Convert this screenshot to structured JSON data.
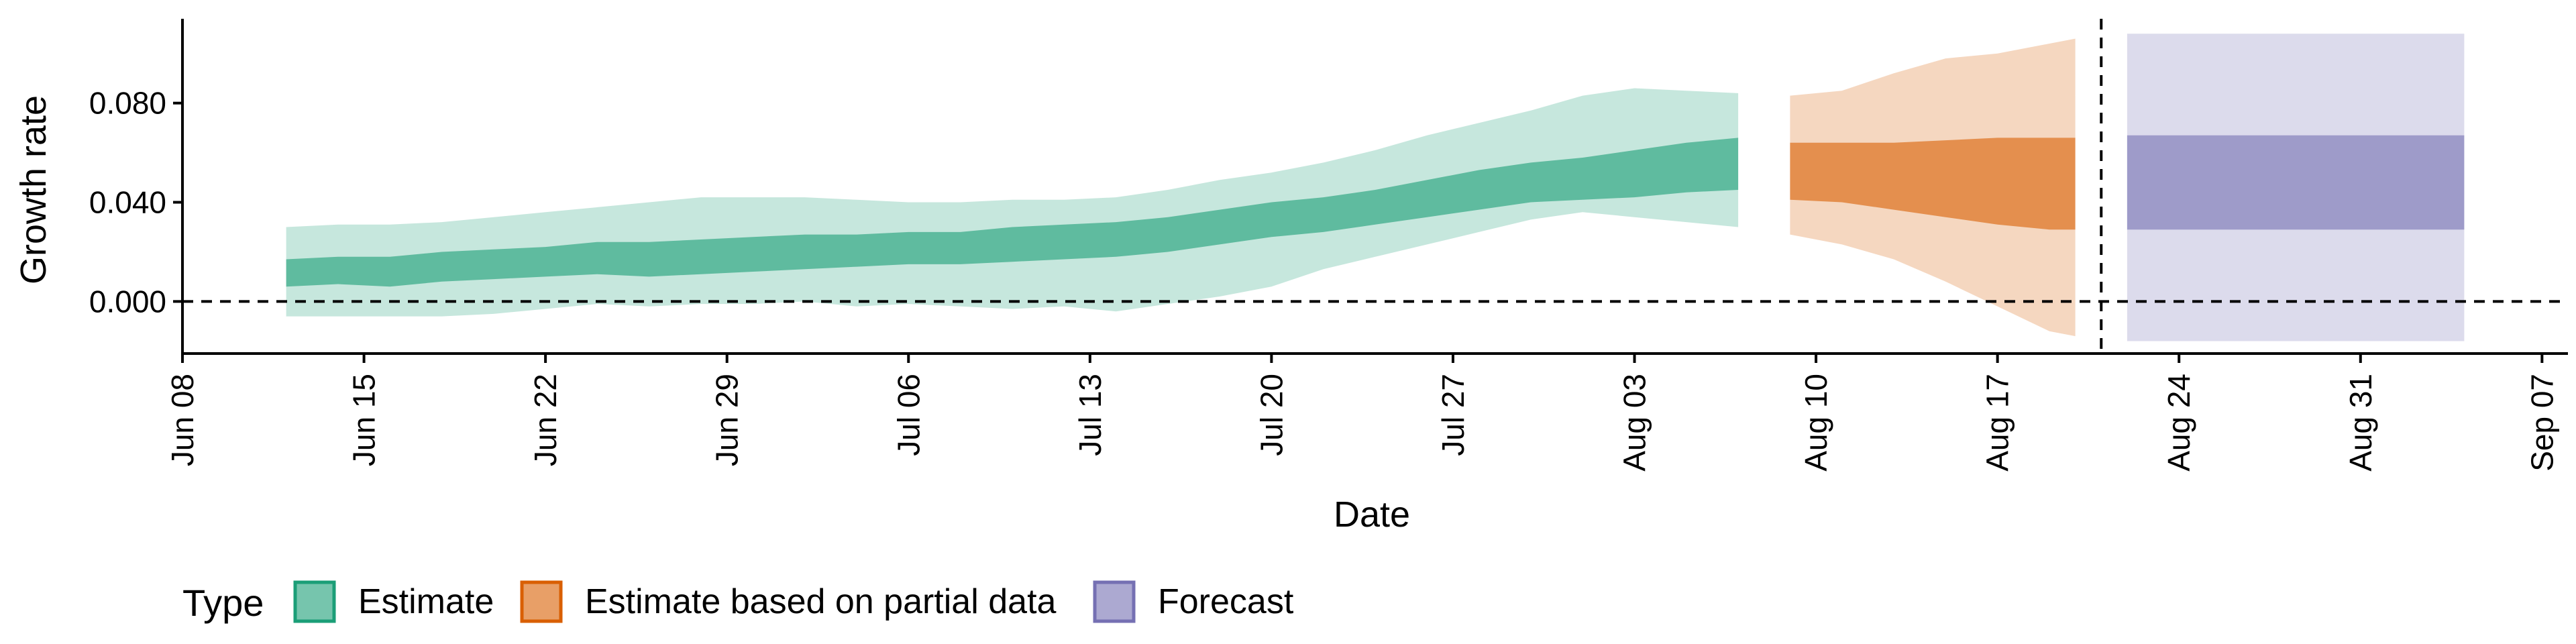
{
  "chart_data": {
    "type": "area",
    "ylabel": "Growth rate",
    "xlabel": "Date",
    "x_ticks": [
      "Jun 08",
      "Jun 15",
      "Jun 22",
      "Jun 29",
      "Jul 06",
      "Jul 13",
      "Jul 20",
      "Jul 27",
      "Aug 03",
      "Aug 10",
      "Aug 17",
      "Aug 24",
      "Aug 31",
      "Sep 07"
    ],
    "y_ticks": [
      "0.000",
      "0.040",
      "0.080"
    ],
    "xlim": [
      "2020-06-08",
      "2020-09-08"
    ],
    "ylim": [
      -0.021,
      0.114
    ],
    "reference_lines": [
      {
        "axis": "y",
        "value": 0.0,
        "style": "dashed"
      },
      {
        "axis": "x",
        "value": "2020-08-21",
        "style": "dashed"
      }
    ],
    "legend": {
      "title": "Type",
      "position": "bottom-left",
      "items": [
        {
          "label": "Estimate",
          "color": "#1b9e77"
        },
        {
          "label": "Estimate based on partial data",
          "color": "#d95f02"
        },
        {
          "label": "Forecast",
          "color": "#7570b3"
        }
      ]
    },
    "series": [
      {
        "name": "Estimate",
        "color": "#1b9e77",
        "points": [
          {
            "x": "2020-06-12",
            "lo90": -0.006,
            "lo50": 0.006,
            "hi50": 0.017,
            "hi90": 0.03
          },
          {
            "x": "2020-06-14",
            "lo90": -0.006,
            "lo50": 0.007,
            "hi50": 0.018,
            "hi90": 0.031
          },
          {
            "x": "2020-06-16",
            "lo90": -0.006,
            "lo50": 0.006,
            "hi50": 0.018,
            "hi90": 0.031
          },
          {
            "x": "2020-06-18",
            "lo90": -0.006,
            "lo50": 0.008,
            "hi50": 0.02,
            "hi90": 0.032
          },
          {
            "x": "2020-06-20",
            "lo90": -0.005,
            "lo50": 0.009,
            "hi50": 0.021,
            "hi90": 0.034
          },
          {
            "x": "2020-06-22",
            "lo90": -0.003,
            "lo50": 0.01,
            "hi50": 0.022,
            "hi90": 0.036
          },
          {
            "x": "2020-06-24",
            "lo90": -0.001,
            "lo50": 0.011,
            "hi50": 0.024,
            "hi90": 0.038
          },
          {
            "x": "2020-06-26",
            "lo90": -0.002,
            "lo50": 0.01,
            "hi50": 0.024,
            "hi90": 0.04
          },
          {
            "x": "2020-06-28",
            "lo90": -0.001,
            "lo50": 0.011,
            "hi50": 0.025,
            "hi90": 0.042
          },
          {
            "x": "2020-06-30",
            "lo90": -0.001,
            "lo50": 0.012,
            "hi50": 0.026,
            "hi90": 0.042
          },
          {
            "x": "2020-07-02",
            "lo90": 0.0,
            "lo50": 0.013,
            "hi50": 0.027,
            "hi90": 0.042
          },
          {
            "x": "2020-07-04",
            "lo90": -0.002,
            "lo50": 0.014,
            "hi50": 0.027,
            "hi90": 0.041
          },
          {
            "x": "2020-07-06",
            "lo90": -0.001,
            "lo50": 0.015,
            "hi50": 0.028,
            "hi90": 0.04
          },
          {
            "x": "2020-07-08",
            "lo90": -0.002,
            "lo50": 0.015,
            "hi50": 0.028,
            "hi90": 0.04
          },
          {
            "x": "2020-07-10",
            "lo90": -0.003,
            "lo50": 0.016,
            "hi50": 0.03,
            "hi90": 0.041
          },
          {
            "x": "2020-07-12",
            "lo90": -0.002,
            "lo50": 0.017,
            "hi50": 0.031,
            "hi90": 0.041
          },
          {
            "x": "2020-07-14",
            "lo90": -0.004,
            "lo50": 0.018,
            "hi50": 0.032,
            "hi90": 0.042
          },
          {
            "x": "2020-07-16",
            "lo90": -0.001,
            "lo50": 0.02,
            "hi50": 0.034,
            "hi90": 0.045
          },
          {
            "x": "2020-07-18",
            "lo90": 0.002,
            "lo50": 0.023,
            "hi50": 0.037,
            "hi90": 0.049
          },
          {
            "x": "2020-07-20",
            "lo90": 0.006,
            "lo50": 0.026,
            "hi50": 0.04,
            "hi90": 0.052
          },
          {
            "x": "2020-07-22",
            "lo90": 0.013,
            "lo50": 0.028,
            "hi50": 0.042,
            "hi90": 0.056
          },
          {
            "x": "2020-07-24",
            "lo90": 0.018,
            "lo50": 0.031,
            "hi50": 0.045,
            "hi90": 0.061
          },
          {
            "x": "2020-07-26",
            "lo90": 0.023,
            "lo50": 0.034,
            "hi50": 0.049,
            "hi90": 0.067
          },
          {
            "x": "2020-07-28",
            "lo90": 0.028,
            "lo50": 0.037,
            "hi50": 0.053,
            "hi90": 0.072
          },
          {
            "x": "2020-07-30",
            "lo90": 0.033,
            "lo50": 0.04,
            "hi50": 0.056,
            "hi90": 0.077
          },
          {
            "x": "2020-08-01",
            "lo90": 0.036,
            "lo50": 0.041,
            "hi50": 0.058,
            "hi90": 0.083
          },
          {
            "x": "2020-08-03",
            "lo90": 0.034,
            "lo50": 0.042,
            "hi50": 0.061,
            "hi90": 0.086
          },
          {
            "x": "2020-08-05",
            "lo90": 0.032,
            "lo50": 0.044,
            "hi50": 0.064,
            "hi90": 0.085
          },
          {
            "x": "2020-08-07",
            "lo90": 0.03,
            "lo50": 0.045,
            "hi50": 0.066,
            "hi90": 0.084
          }
        ]
      },
      {
        "name": "Estimate based on partial data",
        "color": "#d95f02",
        "points": [
          {
            "x": "2020-08-09",
            "lo90": 0.027,
            "lo50": 0.041,
            "hi50": 0.064,
            "hi90": 0.083
          },
          {
            "x": "2020-08-11",
            "lo90": 0.023,
            "lo50": 0.04,
            "hi50": 0.064,
            "hi90": 0.085
          },
          {
            "x": "2020-08-13",
            "lo90": 0.017,
            "lo50": 0.037,
            "hi50": 0.064,
            "hi90": 0.092
          },
          {
            "x": "2020-08-15",
            "lo90": 0.008,
            "lo50": 0.034,
            "hi50": 0.065,
            "hi90": 0.098
          },
          {
            "x": "2020-08-17",
            "lo90": -0.002,
            "lo50": 0.031,
            "hi50": 0.066,
            "hi90": 0.1
          },
          {
            "x": "2020-08-19",
            "lo90": -0.012,
            "lo50": 0.029,
            "hi50": 0.066,
            "hi90": 0.104
          },
          {
            "x": "2020-08-20",
            "lo90": -0.014,
            "lo50": 0.029,
            "hi50": 0.066,
            "hi90": 0.106
          }
        ]
      },
      {
        "name": "Forecast",
        "color": "#7570b3",
        "points": [
          {
            "x": "2020-08-22",
            "lo90": -0.016,
            "lo50": 0.029,
            "hi50": 0.067,
            "hi90": 0.108
          },
          {
            "x": "2020-09-04",
            "lo90": -0.016,
            "lo50": 0.029,
            "hi50": 0.067,
            "hi90": 0.108
          }
        ]
      }
    ]
  }
}
